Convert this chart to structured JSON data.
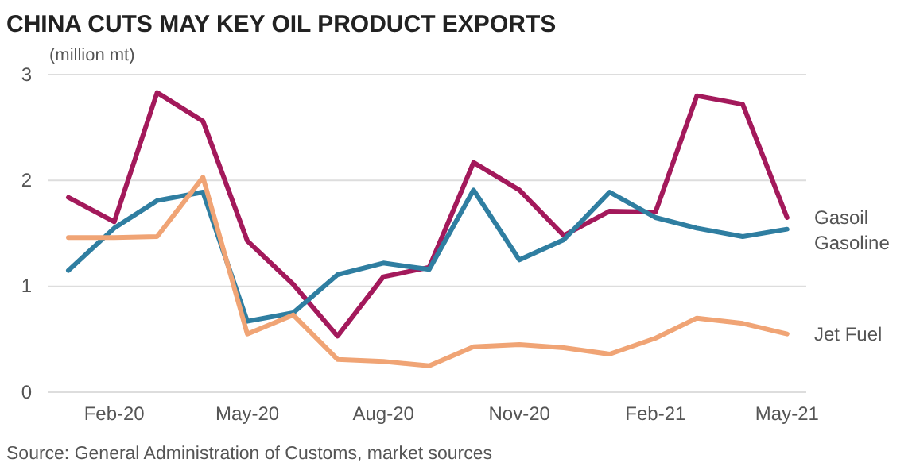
{
  "chart_data": {
    "type": "line",
    "title": "CHINA CUTS MAY KEY OIL PRODUCT EXPORTS",
    "ylabel": "(million mt)",
    "x": [
      "2020-01",
      "2020-02",
      "2020-03",
      "2020-04",
      "2020-05",
      "2020-06",
      "2020-07",
      "2020-08",
      "2020-09",
      "2020-10",
      "2020-11",
      "2020-12",
      "2021-01",
      "2021-02",
      "2021-03",
      "2021-04",
      "2021-05"
    ],
    "series": [
      {
        "name": "Gasoil",
        "color": "#a3195b",
        "values": [
          1.84,
          1.61,
          2.83,
          2.56,
          1.43,
          1.02,
          0.53,
          1.09,
          1.18,
          2.17,
          1.91,
          1.48,
          1.71,
          1.7,
          2.8,
          2.72,
          1.65
        ]
      },
      {
        "name": "Gasoline",
        "color": "#2f7ea1",
        "values": [
          1.15,
          1.55,
          1.81,
          1.89,
          0.67,
          0.75,
          1.11,
          1.22,
          1.16,
          1.91,
          1.25,
          1.44,
          1.89,
          1.65,
          1.55,
          1.47,
          1.54
        ]
      },
      {
        "name": "Jet Fuel",
        "color": "#f0a475",
        "values": [
          1.46,
          1.46,
          1.47,
          2.03,
          0.55,
          0.73,
          0.31,
          0.29,
          0.25,
          0.43,
          0.45,
          0.42,
          0.36,
          0.51,
          0.7,
          0.65,
          0.55
        ]
      }
    ],
    "xlim": [
      "2019-12-18",
      "2021-05-14"
    ],
    "xticks": [
      {
        "value": "2020-02",
        "label": "Feb-20"
      },
      {
        "value": "2020-05",
        "label": "May-20"
      },
      {
        "value": "2020-08",
        "label": "Aug-20"
      },
      {
        "value": "2020-11",
        "label": "Nov-20"
      },
      {
        "value": "2021-02",
        "label": "Feb-21"
      },
      {
        "value": "2021-05",
        "label": "May-21"
      }
    ],
    "ylim": [
      0,
      3
    ],
    "yticks": [
      0,
      1,
      2,
      3
    ],
    "grid": "y",
    "annotations": [
      "Source: General Administration of Customs, market sources"
    ]
  }
}
